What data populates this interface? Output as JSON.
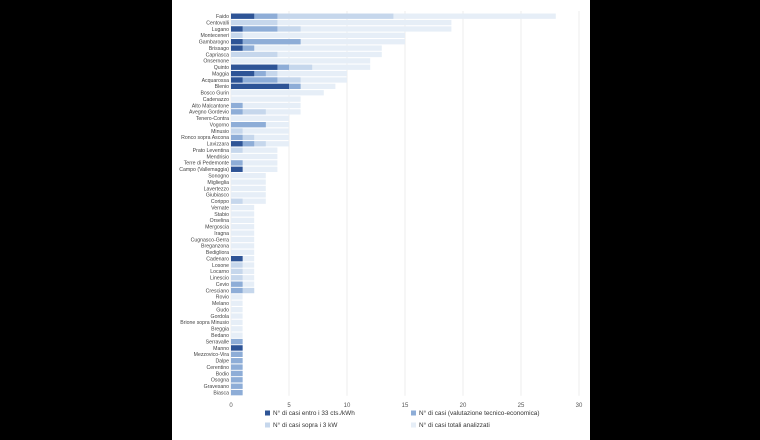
{
  "chart_data": {
    "type": "bar",
    "orientation": "horizontal",
    "stacking": "overlay",
    "categories": [
      "Faido",
      "Centovalli",
      "Lugano",
      "Monteceneri",
      "Gambarogno",
      "Brissago",
      "Capriasca",
      "Onsernone",
      "Quinto",
      "Maggia",
      "Acquarossa",
      "Blenio",
      "Bosco Gurin",
      "Cadenazzo",
      "Alto Malcantone",
      "Avegno Gordevio",
      "Tenero-Contra",
      "Vogorno",
      "Minusio",
      "Ronco sopra Ascona",
      "Lavizzara",
      "Prato Leventina",
      "Mendrisio",
      "Terre di Pedemonte",
      "Campo (Vallemaggia)",
      "Sonogno",
      "Miglieglia",
      "Lavertezzo",
      "Giubiasco",
      "Corippo",
      "Vernate",
      "Stabio",
      "Orselina",
      "Mergoscia",
      "Iragna",
      "Cugnasco-Gerra",
      "Breganzona",
      "Bedigliora",
      "Cadenaro",
      "Losone",
      "Locarno",
      "Linescio",
      "Cevio",
      "Cresciano",
      "Rovio",
      "Melano",
      "Gudo",
      "Gordola",
      "Brione sopra Minusio",
      "Breggia",
      "Bedano",
      "Serravalle",
      "Manno",
      "Mezzovico-Vira",
      "Dalpe",
      "Cerentino",
      "Bodio",
      "Osogna",
      "Gravesano",
      "Biasca"
    ],
    "series": [
      {
        "name": "N° di casi totali analizzati",
        "color": "#e6eef7",
        "values": [
          28,
          19,
          19,
          15,
          15,
          13,
          13,
          12,
          12,
          10,
          10,
          9,
          8,
          6,
          6,
          6,
          5,
          5,
          5,
          5,
          5,
          4,
          4,
          4,
          4,
          3,
          3,
          3,
          3,
          3,
          2,
          2,
          2,
          2,
          2,
          2,
          2,
          2,
          2,
          2,
          2,
          2,
          2,
          2,
          1,
          1,
          1,
          1,
          1,
          1,
          1,
          1,
          1,
          1,
          1,
          1,
          1,
          1,
          1,
          1
        ]
      },
      {
        "name": "N° di casi sopra i 3 kW",
        "color": "#c6d7ec",
        "values": [
          14,
          4,
          6,
          1,
          6,
          2,
          4,
          0,
          7,
          4,
          6,
          6,
          0,
          0,
          1,
          3,
          0,
          3,
          1,
          2,
          3,
          1,
          0,
          1,
          1,
          0,
          0,
          0,
          0,
          1,
          0,
          0,
          0,
          0,
          0,
          0,
          0,
          0,
          1,
          1,
          1,
          1,
          1,
          2,
          0,
          0,
          0,
          0,
          0,
          0,
          0,
          1,
          1,
          1,
          1,
          1,
          1,
          1,
          1,
          1
        ]
      },
      {
        "name": "N° di casi (valutazione tecnico-economica)",
        "color": "#8eadd7",
        "values": [
          4,
          0,
          4,
          0,
          6,
          2,
          0,
          0,
          5,
          3,
          4,
          6,
          0,
          0,
          1,
          1,
          0,
          3,
          0,
          1,
          2,
          0,
          0,
          1,
          1,
          0,
          0,
          0,
          0,
          0,
          0,
          0,
          0,
          0,
          0,
          0,
          0,
          0,
          1,
          0,
          0,
          0,
          1,
          1,
          0,
          0,
          0,
          0,
          0,
          0,
          0,
          1,
          1,
          1,
          1,
          1,
          1,
          1,
          1,
          1
        ]
      },
      {
        "name": "N° di casi entro i 33 cts./kWh",
        "color": "#2e5496",
        "values": [
          2,
          0,
          1,
          0,
          1,
          1,
          0,
          0,
          4,
          2,
          1,
          5,
          0,
          0,
          0,
          0,
          0,
          0,
          0,
          0,
          1,
          0,
          0,
          0,
          1,
          0,
          0,
          0,
          0,
          0,
          0,
          0,
          0,
          0,
          0,
          0,
          0,
          0,
          1,
          0,
          0,
          0,
          0,
          0,
          0,
          0,
          0,
          0,
          0,
          0,
          0,
          0,
          1,
          0,
          0,
          0,
          0,
          0,
          0,
          0
        ]
      }
    ],
    "xlim": [
      0,
      30
    ],
    "xticks": [
      "0",
      "5",
      "10",
      "15",
      "20",
      "25",
      "30"
    ],
    "grid": true,
    "legend_position": "bottom",
    "legend_order": [
      3,
      2,
      1,
      0
    ]
  }
}
